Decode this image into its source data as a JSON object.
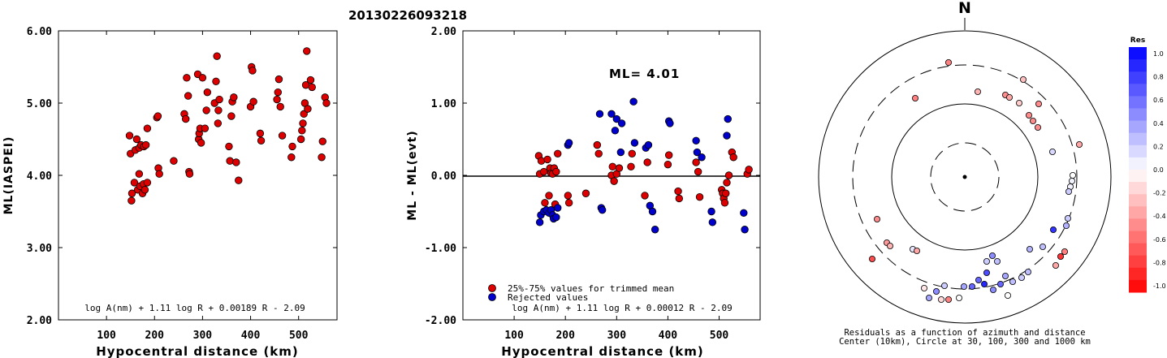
{
  "title": "20130226093218",
  "chart_data": [
    {
      "type": "scatter",
      "xlabel": "Hypocentral distance (km)",
      "ylabel": "ML(IASPEI)",
      "xlim": [
        0,
        580
      ],
      "ylim": [
        2.0,
        6.0
      ],
      "xticks": [
        "100",
        "200",
        "300",
        "400",
        "500"
      ],
      "yticks": [
        "2.00",
        "3.00",
        "4.00",
        "5.00",
        "6.00"
      ],
      "formula": "log A(nm) + 1.11 log R + 0.00189 R - 2.09",
      "color": "#dd0000",
      "points": [
        [
          148,
          4.55
        ],
        [
          150,
          4.3
        ],
        [
          152,
          3.65
        ],
        [
          153,
          3.75
        ],
        [
          158,
          3.9
        ],
        [
          160,
          4.35
        ],
        [
          163,
          4.5
        ],
        [
          165,
          3.8
        ],
        [
          168,
          4.02
        ],
        [
          168,
          4.38
        ],
        [
          170,
          3.85
        ],
        [
          172,
          4.42
        ],
        [
          175,
          3.75
        ],
        [
          177,
          3.88
        ],
        [
          178,
          4.4
        ],
        [
          180,
          3.8
        ],
        [
          182,
          4.42
        ],
        [
          185,
          3.9
        ],
        [
          185,
          4.65
        ],
        [
          205,
          4.8
        ],
        [
          207,
          4.82
        ],
        [
          208,
          4.1
        ],
        [
          210,
          4.02
        ],
        [
          240,
          4.2
        ],
        [
          262,
          4.85
        ],
        [
          265,
          4.78
        ],
        [
          267,
          5.35
        ],
        [
          270,
          5.1
        ],
        [
          272,
          4.05
        ],
        [
          273,
          4.02
        ],
        [
          290,
          5.4
        ],
        [
          292,
          4.5
        ],
        [
          293,
          4.58
        ],
        [
          295,
          4.65
        ],
        [
          297,
          4.45
        ],
        [
          300,
          5.35
        ],
        [
          305,
          4.65
        ],
        [
          308,
          4.9
        ],
        [
          310,
          5.15
        ],
        [
          325,
          5.0
        ],
        [
          328,
          5.3
        ],
        [
          330,
          5.65
        ],
        [
          332,
          4.72
        ],
        [
          333,
          4.9
        ],
        [
          335,
          5.05
        ],
        [
          355,
          4.4
        ],
        [
          357,
          4.2
        ],
        [
          360,
          4.82
        ],
        [
          362,
          5.02
        ],
        [
          365,
          5.08
        ],
        [
          370,
          4.18
        ],
        [
          375,
          3.93
        ],
        [
          400,
          4.95
        ],
        [
          402,
          5.5
        ],
        [
          404,
          5.45
        ],
        [
          406,
          5.02
        ],
        [
          420,
          4.58
        ],
        [
          422,
          4.48
        ],
        [
          455,
          5.05
        ],
        [
          457,
          5.15
        ],
        [
          459,
          5.33
        ],
        [
          462,
          4.95
        ],
        [
          466,
          4.55
        ],
        [
          485,
          4.25
        ],
        [
          487,
          4.4
        ],
        [
          505,
          4.5
        ],
        [
          507,
          4.62
        ],
        [
          509,
          4.72
        ],
        [
          511,
          4.85
        ],
        [
          513,
          5.0
        ],
        [
          515,
          5.25
        ],
        [
          517,
          5.72
        ],
        [
          519,
          4.92
        ],
        [
          525,
          5.32
        ],
        [
          528,
          5.22
        ],
        [
          548,
          4.25
        ],
        [
          550,
          4.47
        ],
        [
          555,
          5.08
        ],
        [
          558,
          5.0
        ]
      ]
    },
    {
      "type": "scatter",
      "xlabel": "Hypocentral distance (km)",
      "ylabel": "ML - ML(evt)",
      "xlim": [
        0,
        580
      ],
      "ylim": [
        -2.0,
        2.0
      ],
      "xticks": [
        "100",
        "200",
        "300",
        "400",
        "500"
      ],
      "yticks": [
        "-2.00",
        "-1.00",
        "0.00",
        "1.00",
        "2.00"
      ],
      "annotation": "ML= 4.01",
      "formula": "log A(nm) + 1.11 log R + 0.00012 R - 2.09",
      "legend": [
        "25%-75% values for trimmed mean",
        "Rejected values"
      ],
      "series": [
        {
          "name": "25%-75% values for trimmed mean",
          "color": "#dd0000",
          "points": [
            [
              148,
              0.27
            ],
            [
              150,
              0.02
            ],
            [
              153,
              0.2
            ],
            [
              158,
              0.05
            ],
            [
              160,
              -0.38
            ],
            [
              165,
              0.22
            ],
            [
              168,
              -0.28
            ],
            [
              170,
              0.1
            ],
            [
              172,
              0.03
            ],
            [
              175,
              0.02
            ],
            [
              178,
              0.1
            ],
            [
              180,
              -0.4
            ],
            [
              182,
              0.05
            ],
            [
              185,
              0.3
            ],
            [
              205,
              -0.28
            ],
            [
              207,
              -0.38
            ],
            [
              240,
              -0.25
            ],
            [
              262,
              0.42
            ],
            [
              265,
              0.3
            ],
            [
              290,
              0.0
            ],
            [
              292,
              0.12
            ],
            [
              295,
              -0.08
            ],
            [
              300,
              0.02
            ],
            [
              305,
              0.1
            ],
            [
              328,
              0.12
            ],
            [
              330,
              0.3
            ],
            [
              355,
              -0.28
            ],
            [
              360,
              0.18
            ],
            [
              400,
              0.15
            ],
            [
              402,
              0.28
            ],
            [
              420,
              -0.22
            ],
            [
              422,
              -0.32
            ],
            [
              455,
              0.18
            ],
            [
              459,
              0.05
            ],
            [
              462,
              -0.3
            ],
            [
              505,
              -0.2
            ],
            [
              507,
              -0.25
            ],
            [
              509,
              -0.32
            ],
            [
              511,
              -0.38
            ],
            [
              513,
              -0.25
            ],
            [
              515,
              -0.1
            ],
            [
              519,
              0.0
            ],
            [
              525,
              0.32
            ],
            [
              528,
              0.25
            ],
            [
              555,
              0.02
            ],
            [
              558,
              0.08
            ]
          ]
        },
        {
          "name": "Rejected values",
          "color": "#0000cc",
          "points": [
            [
              150,
              -0.65
            ],
            [
              152,
              -0.55
            ],
            [
              158,
              -0.5
            ],
            [
              163,
              -0.48
            ],
            [
              168,
              -0.52
            ],
            [
              172,
              -0.48
            ],
            [
              175,
              -0.55
            ],
            [
              177,
              -0.6
            ],
            [
              182,
              -0.58
            ],
            [
              185,
              -0.45
            ],
            [
              205,
              0.42
            ],
            [
              207,
              0.45
            ],
            [
              267,
              0.85
            ],
            [
              270,
              -0.45
            ],
            [
              272,
              -0.48
            ],
            [
              290,
              0.85
            ],
            [
              297,
              0.62
            ],
            [
              300,
              0.78
            ],
            [
              308,
              0.32
            ],
            [
              310,
              0.72
            ],
            [
              333,
              1.02
            ],
            [
              335,
              0.45
            ],
            [
              357,
              0.38
            ],
            [
              362,
              0.42
            ],
            [
              365,
              -0.42
            ],
            [
              370,
              -0.5
            ],
            [
              375,
              -0.75
            ],
            [
              402,
              0.75
            ],
            [
              404,
              0.72
            ],
            [
              455,
              0.48
            ],
            [
              457,
              0.32
            ],
            [
              466,
              0.25
            ],
            [
              485,
              -0.5
            ],
            [
              487,
              -0.65
            ],
            [
              515,
              0.55
            ],
            [
              517,
              0.78
            ],
            [
              548,
              -0.52
            ],
            [
              550,
              -0.75
            ]
          ]
        }
      ]
    },
    {
      "type": "scatter",
      "title": "N",
      "caption1": "Residuals as a function of azimuth and distance",
      "caption2": "Center (10km), Circle at 30, 100, 300 and 1000 km",
      "colorbar_label": "Res",
      "colorbar_ticks": [
        "1.0",
        "0.8",
        "0.6",
        "0.4",
        "0.2",
        "0.0",
        "-0.2",
        "-0.4",
        "-0.6",
        "-0.8",
        "-1.0"
      ],
      "points": [
        [
          1168,
          77,
          -0.5
        ],
        [
          1127,
          121,
          -0.5
        ],
        [
          1204,
          113,
          -0.3
        ],
        [
          1238,
          117,
          -0.45
        ],
        [
          1243,
          120,
          -0.35
        ],
        [
          1255,
          127,
          -0.2
        ],
        [
          1260,
          98,
          -0.25
        ],
        [
          1279,
          128,
          -0.45
        ],
        [
          1267,
          142,
          -0.45
        ],
        [
          1272,
          149,
          -0.45
        ],
        [
          1278,
          157,
          -0.45
        ],
        [
          1329,
          178,
          -0.35
        ],
        [
          1296,
          187,
          0.15
        ],
        [
          1321,
          216,
          0.0
        ],
        [
          1320,
          223,
          0.05
        ],
        [
          1318,
          230,
          0.05
        ],
        [
          1316,
          236,
          0.2
        ],
        [
          1315,
          269,
          0.2
        ],
        [
          1313,
          278,
          0.3
        ],
        [
          1297,
          283,
          0.8
        ],
        [
          1311,
          310,
          -0.5
        ],
        [
          1306,
          316,
          -0.8
        ],
        [
          1300,
          327,
          -0.35
        ],
        [
          1268,
          307,
          0.3
        ],
        [
          1284,
          304,
          0.25
        ],
        [
          1266,
          335,
          0.25
        ],
        [
          1258,
          342,
          0.2
        ],
        [
          1247,
          347,
          0.25
        ],
        [
          1238,
          340,
          0.35
        ],
        [
          1232,
          350,
          0.6
        ],
        [
          1223,
          357,
          0.45
        ],
        [
          1212,
          350,
          0.85
        ],
        [
          1215,
          336,
          0.7
        ],
        [
          1222,
          315,
          0.45
        ],
        [
          1228,
          322,
          0.25
        ],
        [
          1215,
          322,
          0.2
        ],
        [
          1205,
          345,
          0.6
        ],
        [
          1197,
          353,
          0.6
        ],
        [
          1187,
          353,
          0.35
        ],
        [
          1163,
          352,
          0.2
        ],
        [
          1153,
          359,
          0.45
        ],
        [
          1138,
          355,
          -0.1
        ],
        [
          1144,
          367,
          0.35
        ],
        [
          1159,
          369,
          -0.15
        ],
        [
          1168,
          369,
          -0.5
        ],
        [
          1181,
          367,
          0.0
        ],
        [
          1241,
          364,
          0.0
        ],
        [
          1080,
          270,
          -0.45
        ],
        [
          1092,
          299,
          -0.4
        ],
        [
          1096,
          303,
          -0.3
        ],
        [
          1124,
          307,
          0.1
        ],
        [
          1129,
          309,
          -0.35
        ],
        [
          1074,
          319,
          -0.7
        ]
      ]
    }
  ]
}
